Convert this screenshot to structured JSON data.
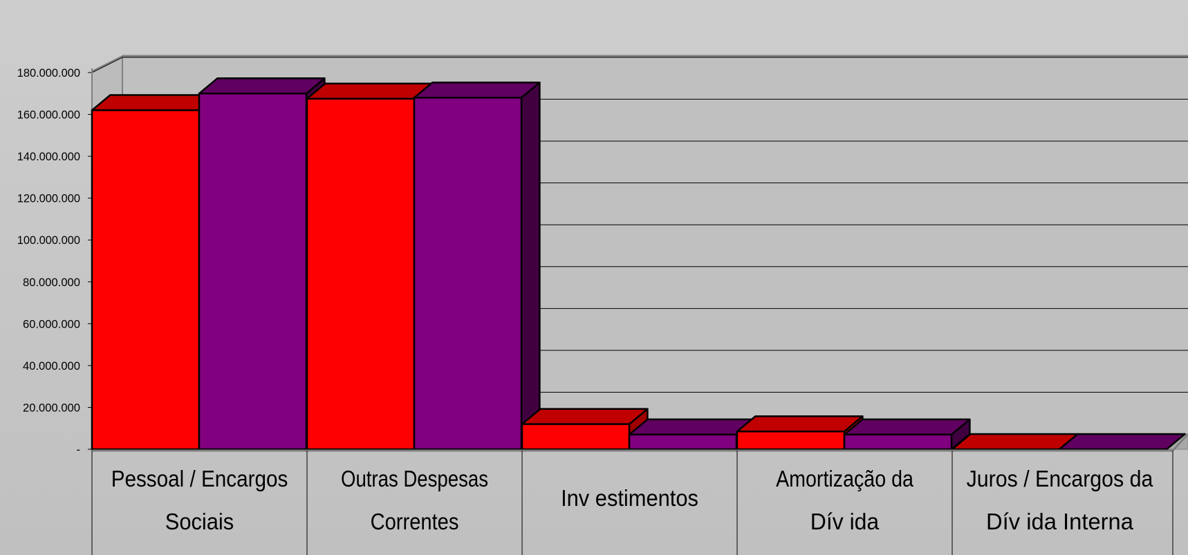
{
  "chart_data": {
    "type": "bar",
    "categories": [
      [
        "Pessoal / Encargos",
        "Sociais"
      ],
      [
        "Outras Despesas",
        "Correntes"
      ],
      [
        "Inv estimentos"
      ],
      [
        "Amortização da",
        "Dív ida"
      ],
      [
        "Juros / Encargos da",
        "Dív ida Interna"
      ]
    ],
    "series": [
      {
        "color": "#ff0000",
        "top_color": "#c00000",
        "side_color": "#a00000",
        "values": [
          162000000,
          167500000,
          12000000,
          8500000,
          0
        ]
      },
      {
        "color": "#800080",
        "top_color": "#600060",
        "side_color": "#400040",
        "values": [
          170000000,
          168000000,
          7000000,
          7000000,
          0
        ]
      }
    ],
    "ylim": [
      0,
      180000000
    ],
    "yticks": [
      {
        "value": 0,
        "label": "-"
      },
      {
        "value": 20000000,
        "label": "20.000.000"
      },
      {
        "value": 40000000,
        "label": "40.000.000"
      },
      {
        "value": 60000000,
        "label": "60.000.000"
      },
      {
        "value": 80000000,
        "label": "80.000.000"
      },
      {
        "value": 100000000,
        "label": "100.000.000"
      },
      {
        "value": 120000000,
        "label": "120.000.000"
      },
      {
        "value": 140000000,
        "label": "140.000.000"
      },
      {
        "value": 160000000,
        "label": "160.000.000"
      },
      {
        "value": 180000000,
        "label": "180.000.000"
      }
    ],
    "grid": true,
    "background_color": "#c0c0c0"
  }
}
